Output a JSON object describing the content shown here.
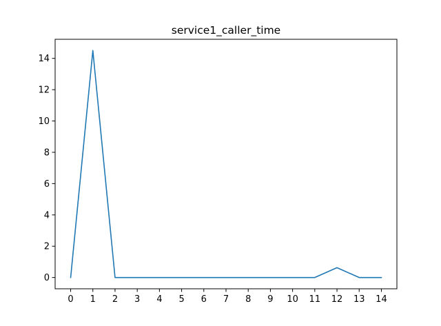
{
  "chart_data": {
    "type": "line",
    "title": "service1_caller_time",
    "xlabel": "",
    "ylabel": "",
    "x": [
      0,
      1,
      2,
      3,
      4,
      5,
      6,
      7,
      8,
      9,
      10,
      11,
      12,
      13,
      14
    ],
    "series": [
      {
        "values": [
          0,
          14.5,
          0,
          0,
          0,
          0,
          0,
          0,
          0,
          0,
          0,
          0,
          0.63,
          0,
          0
        ],
        "color": "#1f77b4"
      }
    ],
    "xlim": [
      -0.7,
      14.7
    ],
    "ylim": [
      -0.72,
      15.22
    ],
    "xticks": [
      0,
      1,
      2,
      3,
      4,
      5,
      6,
      7,
      8,
      9,
      10,
      11,
      12,
      13,
      14
    ],
    "xtick_labels": [
      "0",
      "1",
      "2",
      "3",
      "4",
      "5",
      "6",
      "7",
      "8",
      "9",
      "10",
      "11",
      "12",
      "13",
      "14"
    ],
    "yticks": [
      0,
      2,
      4,
      6,
      8,
      10,
      12,
      14
    ],
    "ytick_labels": [
      "0",
      "2",
      "4",
      "6",
      "8",
      "10",
      "12",
      "14"
    ],
    "grid": false,
    "legend": false
  }
}
